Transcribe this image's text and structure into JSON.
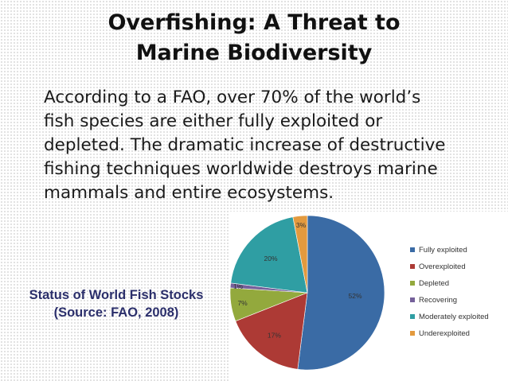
{
  "title": {
    "line1": "Overfishing: A Threat to",
    "line2": "Marine Biodiversity"
  },
  "body": {
    "lines": [
      "According to a FAO, over 70% of the world’s",
      "fish species are either fully exploited or",
      "depleted. The dramatic increase of destructive",
      "fishing techniques worldwide destroys marine",
      "mammals and entire ecosystems."
    ]
  },
  "caption": {
    "line1": "Status of World Fish Stocks",
    "line2": "(Source: FAO, 2008)"
  },
  "chart_data": {
    "type": "pie",
    "title": "",
    "legend_position": "right",
    "series": [
      {
        "name": "Fully exploited",
        "value": 52,
        "label": "52%",
        "color": "#3a6ba5"
      },
      {
        "name": "Overexploited",
        "value": 17,
        "label": "17%",
        "color": "#ad3a35"
      },
      {
        "name": "Depleted",
        "value": 7,
        "label": "7%",
        "color": "#93a93d"
      },
      {
        "name": "Recovering",
        "value": 1,
        "label": "1%",
        "color": "#75609a"
      },
      {
        "name": "Moderately exploited",
        "value": 20,
        "label": "20%",
        "color": "#2f9ea3"
      },
      {
        "name": "Underexploited",
        "value": 3,
        "label": "3%",
        "color": "#e39a3e"
      }
    ]
  }
}
